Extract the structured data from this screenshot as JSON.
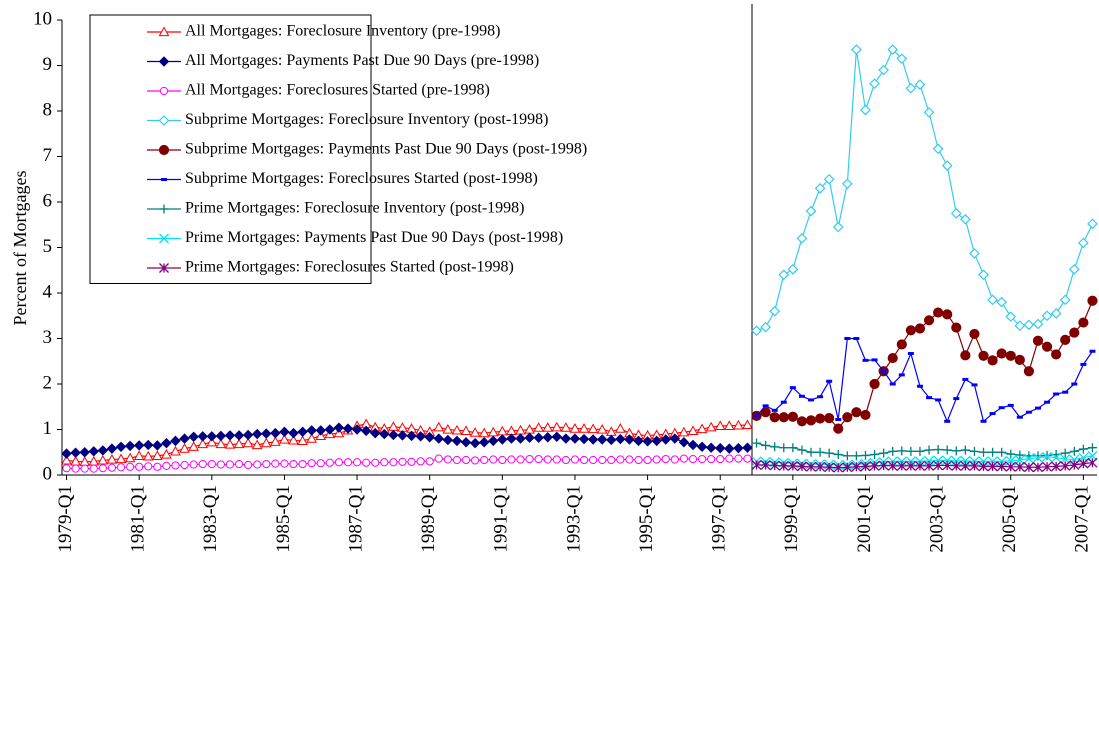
{
  "chart_data": {
    "type": "line",
    "y_label": "Percent of Mortgages",
    "categories": [
      "1979-Q1",
      null,
      null,
      null,
      null,
      null,
      null,
      null,
      "1981-Q1",
      null,
      null,
      null,
      null,
      null,
      null,
      null,
      "1983-Q1",
      null,
      null,
      null,
      null,
      null,
      null,
      null,
      "1985-Q1",
      null,
      null,
      null,
      null,
      null,
      null,
      null,
      "1987-Q1",
      null,
      null,
      null,
      null,
      null,
      null,
      null,
      "1989-Q1",
      null,
      null,
      null,
      null,
      null,
      null,
      null,
      "1991-Q1",
      null,
      null,
      null,
      null,
      null,
      null,
      null,
      "1993-Q1",
      null,
      null,
      null,
      null,
      null,
      null,
      null,
      "1995-Q1",
      null,
      null,
      null,
      null,
      null,
      null,
      null,
      "1997-Q1",
      null,
      null,
      null,
      null,
      null,
      null,
      null,
      "1999-Q1",
      null,
      null,
      null,
      null,
      null,
      null,
      null,
      "2001-Q1",
      null,
      null,
      null,
      null,
      null,
      null,
      null,
      "2003-Q1",
      null,
      null,
      null,
      null,
      null,
      null,
      null,
      "2005-Q1",
      null,
      null,
      null,
      null,
      null,
      null,
      null,
      "2007-Q1",
      null
    ],
    "ylim": [
      0,
      10
    ],
    "yticks": [
      0,
      1,
      2,
      3,
      4,
      5,
      6,
      7,
      8,
      9,
      10
    ],
    "grid": false,
    "legend": "upper left",
    "series": [
      {
        "name": "All Mortgages: Foreclosure Inventory (pre-1998)",
        "color": "#ff0000",
        "marker": "triangle-open",
        "values": [
          0.32,
          0.3,
          0.29,
          0.3,
          0.32,
          0.34,
          0.35,
          0.37,
          0.42,
          0.41,
          0.42,
          0.45,
          0.52,
          0.58,
          0.62,
          0.68,
          0.72,
          0.68,
          0.67,
          0.68,
          0.7,
          0.66,
          0.7,
          0.73,
          0.78,
          0.76,
          0.75,
          0.8,
          0.86,
          0.9,
          0.92,
          0.98,
          1.08,
          1.12,
          1.05,
          1.02,
          1.06,
          1.04,
          1.02,
          0.98,
          0.95,
          1.05,
          1.0,
          0.98,
          0.97,
          0.93,
          0.92,
          0.94,
          0.96,
          0.97,
          0.98,
          1.0,
          1.04,
          1.04,
          1.05,
          1.04,
          1.02,
          1.02,
          1.01,
          1.0,
          0.95,
          1.02,
          0.92,
          0.88,
          0.87,
          0.88,
          0.9,
          0.92,
          0.94,
          0.97,
          1.01,
          1.05,
          1.08,
          1.08,
          1.09,
          1.1,
          null,
          null,
          null,
          null,
          null,
          null,
          null,
          null,
          null,
          null,
          null,
          null,
          null,
          null,
          null,
          null,
          null,
          null,
          null,
          null,
          null,
          null,
          null,
          null,
          null,
          null,
          null,
          null,
          null,
          null,
          null,
          null,
          null,
          null,
          null,
          null,
          null,
          null
        ]
      },
      {
        "name": "All Mortgages: Payments Past Due 90 Days (pre-1998)",
        "color": "#000080",
        "marker": "diamond",
        "values": [
          0.47,
          0.49,
          0.5,
          0.52,
          0.54,
          0.58,
          0.62,
          0.64,
          0.65,
          0.66,
          0.65,
          0.7,
          0.75,
          0.8,
          0.84,
          0.85,
          0.85,
          0.86,
          0.87,
          0.87,
          0.88,
          0.9,
          0.91,
          0.92,
          0.95,
          0.92,
          0.95,
          0.98,
          0.98,
          1.0,
          1.04,
          1.02,
          1.0,
          0.97,
          0.92,
          0.9,
          0.88,
          0.87,
          0.86,
          0.85,
          0.83,
          0.8,
          0.77,
          0.75,
          0.72,
          0.7,
          0.72,
          0.75,
          0.78,
          0.8,
          0.8,
          0.82,
          0.82,
          0.83,
          0.84,
          0.8,
          0.8,
          0.79,
          0.78,
          0.78,
          0.77,
          0.79,
          0.78,
          0.75,
          0.74,
          0.75,
          0.78,
          0.8,
          0.72,
          0.66,
          0.62,
          0.6,
          0.59,
          0.58,
          0.59,
          0.6,
          null,
          null,
          null,
          null,
          null,
          null,
          null,
          null,
          null,
          null,
          null,
          null,
          null,
          null,
          null,
          null,
          null,
          null,
          null,
          null,
          null,
          null,
          null,
          null,
          null,
          null,
          null,
          null,
          null,
          null,
          null,
          null,
          null,
          null,
          null,
          null,
          null,
          null
        ]
      },
      {
        "name": "All Mortgages: Foreclosures Started (pre-1998)",
        "color": "#ff00ff",
        "marker": "circle-open",
        "values": [
          0.15,
          0.14,
          0.14,
          0.14,
          0.15,
          0.16,
          0.17,
          0.18,
          0.18,
          0.19,
          0.18,
          0.2,
          0.21,
          0.22,
          0.23,
          0.24,
          0.24,
          0.23,
          0.23,
          0.24,
          0.22,
          0.23,
          0.24,
          0.25,
          0.25,
          0.24,
          0.24,
          0.26,
          0.26,
          0.27,
          0.28,
          0.28,
          0.28,
          0.27,
          0.27,
          0.28,
          0.28,
          0.29,
          0.29,
          0.3,
          0.3,
          0.36,
          0.34,
          0.33,
          0.33,
          0.32,
          0.33,
          0.34,
          0.33,
          0.34,
          0.34,
          0.35,
          0.35,
          0.34,
          0.34,
          0.33,
          0.34,
          0.33,
          0.33,
          0.33,
          0.33,
          0.34,
          0.34,
          0.33,
          0.33,
          0.34,
          0.35,
          0.34,
          0.36,
          0.35,
          0.35,
          0.35,
          0.35,
          0.36,
          0.36,
          0.36,
          null,
          null,
          null,
          null,
          null,
          null,
          null,
          null,
          null,
          null,
          null,
          null,
          null,
          null,
          null,
          null,
          null,
          null,
          null,
          null,
          null,
          null,
          null,
          null,
          null,
          null,
          null,
          null,
          null,
          null,
          null,
          null,
          null,
          null,
          null,
          null,
          null,
          null
        ]
      },
      {
        "name": "Subprime Mortgages: Foreclosure Inventory (post-1998)",
        "color": "#33ccee",
        "marker": "diamond-open",
        "values": [
          null,
          null,
          null,
          null,
          null,
          null,
          null,
          null,
          null,
          null,
          null,
          null,
          null,
          null,
          null,
          null,
          null,
          null,
          null,
          null,
          null,
          null,
          null,
          null,
          null,
          null,
          null,
          null,
          null,
          null,
          null,
          null,
          null,
          null,
          null,
          null,
          null,
          null,
          null,
          null,
          null,
          null,
          null,
          null,
          null,
          null,
          null,
          null,
          null,
          null,
          null,
          null,
          null,
          null,
          null,
          null,
          null,
          null,
          null,
          null,
          null,
          null,
          null,
          null,
          null,
          null,
          null,
          null,
          null,
          null,
          null,
          null,
          null,
          null,
          null,
          null,
          3.17,
          3.25,
          3.6,
          4.4,
          4.52,
          5.2,
          5.8,
          6.3,
          6.5,
          5.45,
          6.4,
          9.35,
          8.02,
          8.6,
          8.9,
          9.35,
          9.15,
          8.5,
          8.58,
          7.97,
          7.17,
          6.8,
          5.75,
          5.62,
          4.87,
          4.4,
          3.85,
          3.8,
          3.48,
          3.28,
          3.3,
          3.32,
          3.5,
          3.55,
          3.85,
          4.52,
          5.1,
          5.52
        ]
      },
      {
        "name": "Subprime Mortgages: Payments Past Due 90 Days (post-1998)",
        "color": "#800000",
        "marker": "circle",
        "values": [
          null,
          null,
          null,
          null,
          null,
          null,
          null,
          null,
          null,
          null,
          null,
          null,
          null,
          null,
          null,
          null,
          null,
          null,
          null,
          null,
          null,
          null,
          null,
          null,
          null,
          null,
          null,
          null,
          null,
          null,
          null,
          null,
          null,
          null,
          null,
          null,
          null,
          null,
          null,
          null,
          null,
          null,
          null,
          null,
          null,
          null,
          null,
          null,
          null,
          null,
          null,
          null,
          null,
          null,
          null,
          null,
          null,
          null,
          null,
          null,
          null,
          null,
          null,
          null,
          null,
          null,
          null,
          null,
          null,
          null,
          null,
          null,
          null,
          null,
          null,
          null,
          1.3,
          1.38,
          1.27,
          1.27,
          1.28,
          1.18,
          1.2,
          1.24,
          1.25,
          1.02,
          1.27,
          1.38,
          1.32,
          2.0,
          2.28,
          2.57,
          2.87,
          3.18,
          3.22,
          3.4,
          3.57,
          3.53,
          3.24,
          2.63,
          3.1,
          2.62,
          2.52,
          2.67,
          2.62,
          2.53,
          2.28,
          2.95,
          2.82,
          2.65,
          2.97,
          3.13,
          3.35,
          3.83
        ]
      },
      {
        "name": "Subprime Mortgages: Foreclosures Started (post-1998)",
        "color": "#0000ff",
        "marker": "dash",
        "values": [
          null,
          null,
          null,
          null,
          null,
          null,
          null,
          null,
          null,
          null,
          null,
          null,
          null,
          null,
          null,
          null,
          null,
          null,
          null,
          null,
          null,
          null,
          null,
          null,
          null,
          null,
          null,
          null,
          null,
          null,
          null,
          null,
          null,
          null,
          null,
          null,
          null,
          null,
          null,
          null,
          null,
          null,
          null,
          null,
          null,
          null,
          null,
          null,
          null,
          null,
          null,
          null,
          null,
          null,
          null,
          null,
          null,
          null,
          null,
          null,
          null,
          null,
          null,
          null,
          null,
          null,
          null,
          null,
          null,
          null,
          null,
          null,
          null,
          null,
          null,
          null,
          1.3,
          1.52,
          1.42,
          1.6,
          1.92,
          1.73,
          1.65,
          1.72,
          2.06,
          1.22,
          3.0,
          3.0,
          2.52,
          2.53,
          2.28,
          2.0,
          2.2,
          2.67,
          1.95,
          1.7,
          1.65,
          1.18,
          1.68,
          2.1,
          1.98,
          1.18,
          1.35,
          1.48,
          1.53,
          1.27,
          1.38,
          1.47,
          1.6,
          1.78,
          1.82,
          2.0,
          2.43,
          2.72
        ]
      },
      {
        "name": "Prime Mortgages: Foreclosure Inventory (post-1998)",
        "color": "#008080",
        "marker": "plus",
        "values": [
          null,
          null,
          null,
          null,
          null,
          null,
          null,
          null,
          null,
          null,
          null,
          null,
          null,
          null,
          null,
          null,
          null,
          null,
          null,
          null,
          null,
          null,
          null,
          null,
          null,
          null,
          null,
          null,
          null,
          null,
          null,
          null,
          null,
          null,
          null,
          null,
          null,
          null,
          null,
          null,
          null,
          null,
          null,
          null,
          null,
          null,
          null,
          null,
          null,
          null,
          null,
          null,
          null,
          null,
          null,
          null,
          null,
          null,
          null,
          null,
          null,
          null,
          null,
          null,
          null,
          null,
          null,
          null,
          null,
          null,
          null,
          null,
          null,
          null,
          null,
          null,
          0.7,
          0.65,
          0.62,
          0.6,
          0.6,
          0.55,
          0.5,
          0.5,
          0.48,
          0.45,
          0.42,
          0.42,
          0.43,
          0.45,
          0.48,
          0.52,
          0.53,
          0.52,
          0.52,
          0.55,
          0.56,
          0.55,
          0.53,
          0.55,
          0.52,
          0.5,
          0.5,
          0.5,
          0.46,
          0.44,
          0.42,
          0.42,
          0.43,
          0.45,
          0.48,
          0.52,
          0.57,
          0.6
        ]
      },
      {
        "name": "Prime Mortgages: Payments Past Due 90 Days (post-1998)",
        "color": "#00e5ee",
        "marker": "cross",
        "values": [
          null,
          null,
          null,
          null,
          null,
          null,
          null,
          null,
          null,
          null,
          null,
          null,
          null,
          null,
          null,
          null,
          null,
          null,
          null,
          null,
          null,
          null,
          null,
          null,
          null,
          null,
          null,
          null,
          null,
          null,
          null,
          null,
          null,
          null,
          null,
          null,
          null,
          null,
          null,
          null,
          null,
          null,
          null,
          null,
          null,
          null,
          null,
          null,
          null,
          null,
          null,
          null,
          null,
          null,
          null,
          null,
          null,
          null,
          null,
          null,
          null,
          null,
          null,
          null,
          null,
          null,
          null,
          null,
          null,
          null,
          null,
          null,
          null,
          null,
          null,
          null,
          0.3,
          0.29,
          0.28,
          0.27,
          0.26,
          0.25,
          0.24,
          0.24,
          0.23,
          0.22,
          0.22,
          0.23,
          0.25,
          0.27,
          0.29,
          0.3,
          0.3,
          0.3,
          0.3,
          0.31,
          0.32,
          0.32,
          0.31,
          0.31,
          0.3,
          0.3,
          0.3,
          0.3,
          0.31,
          0.33,
          0.36,
          0.38,
          0.4,
          0.38,
          0.35,
          0.34,
          0.38,
          0.42
        ]
      },
      {
        "name": "Prime Mortgages: Foreclosures Started (post-1998)",
        "color": "#800080",
        "marker": "star",
        "values": [
          null,
          null,
          null,
          null,
          null,
          null,
          null,
          null,
          null,
          null,
          null,
          null,
          null,
          null,
          null,
          null,
          null,
          null,
          null,
          null,
          null,
          null,
          null,
          null,
          null,
          null,
          null,
          null,
          null,
          null,
          null,
          null,
          null,
          null,
          null,
          null,
          null,
          null,
          null,
          null,
          null,
          null,
          null,
          null,
          null,
          null,
          null,
          null,
          null,
          null,
          null,
          null,
          null,
          null,
          null,
          null,
          null,
          null,
          null,
          null,
          null,
          null,
          null,
          null,
          null,
          null,
          null,
          null,
          null,
          null,
          null,
          null,
          null,
          null,
          null,
          null,
          0.22,
          0.22,
          0.21,
          0.2,
          0.2,
          0.19,
          0.18,
          0.18,
          0.17,
          0.16,
          0.17,
          0.18,
          0.19,
          0.2,
          0.21,
          0.2,
          0.2,
          0.2,
          0.2,
          0.2,
          0.21,
          0.21,
          0.2,
          0.2,
          0.2,
          0.19,
          0.19,
          0.19,
          0.18,
          0.18,
          0.17,
          0.17,
          0.18,
          0.19,
          0.2,
          0.22,
          0.25,
          0.27
        ]
      }
    ]
  }
}
